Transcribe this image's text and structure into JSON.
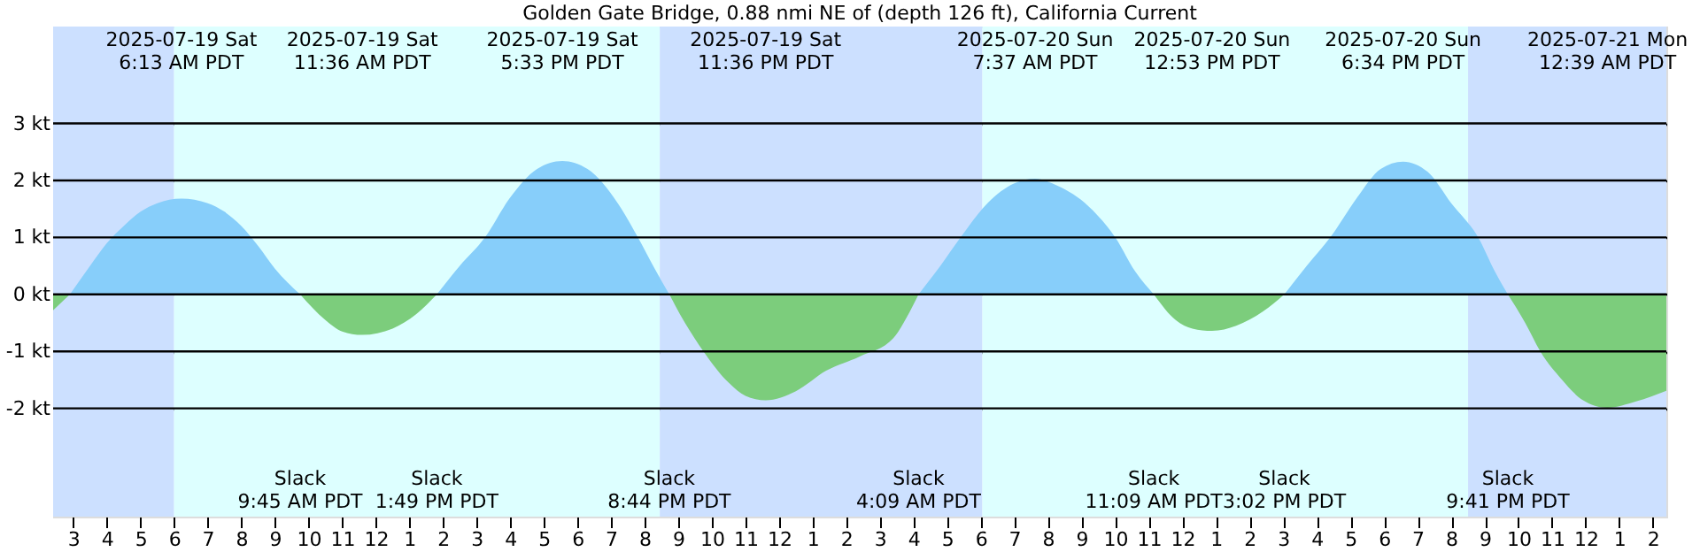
{
  "chart_data": {
    "type": "area",
    "title": "Golden Gate Bridge, 0.88 nmi NE of (depth 126 ft), California Current",
    "x": [
      "2025-07-19T02:24",
      "2025-07-19T02:54",
      "2025-07-19T03:30",
      "2025-07-19T04:00",
      "2025-07-19T04:30",
      "2025-07-19T05:00",
      "2025-07-19T05:30",
      "2025-07-19T06:13",
      "2025-07-19T07:00",
      "2025-07-19T07:30",
      "2025-07-19T08:00",
      "2025-07-19T08:30",
      "2025-07-19T09:00",
      "2025-07-19T09:45",
      "2025-07-19T10:30",
      "2025-07-19T11:00",
      "2025-07-19T11:36",
      "2025-07-19T12:30",
      "2025-07-19T13:12",
      "2025-07-19T13:49",
      "2025-07-19T14:30",
      "2025-07-19T15:15",
      "2025-07-19T16:00",
      "2025-07-19T16:48",
      "2025-07-19T17:33",
      "2025-07-19T18:18",
      "2025-07-19T19:12",
      "2025-07-19T19:48",
      "2025-07-19T20:18",
      "2025-07-19T20:44",
      "2025-07-19T21:12",
      "2025-07-19T21:45",
      "2025-07-19T22:30",
      "2025-07-19T23:00",
      "2025-07-19T23:36",
      "2025-07-20T00:30",
      "2025-07-20T01:24",
      "2025-07-20T02:24",
      "2025-07-20T03:24",
      "2025-07-20T03:48",
      "2025-07-20T04:09",
      "2025-07-20T04:48",
      "2025-07-20T05:24",
      "2025-07-20T06:12",
      "2025-07-20T07:00",
      "2025-07-20T07:37",
      "2025-07-20T08:18",
      "2025-07-20T09:12",
      "2025-07-20T10:00",
      "2025-07-20T10:36",
      "2025-07-20T11:09",
      "2025-07-20T11:48",
      "2025-07-20T12:18",
      "2025-07-20T12:53",
      "2025-07-20T13:36",
      "2025-07-20T14:24",
      "2025-07-20T15:02",
      "2025-07-20T15:42",
      "2025-07-20T16:24",
      "2025-07-20T17:12",
      "2025-07-20T17:54",
      "2025-07-20T18:34",
      "2025-07-20T19:18",
      "2025-07-20T20:00",
      "2025-07-20T20:48",
      "2025-07-20T21:18",
      "2025-07-20T21:41",
      "2025-07-20T22:12",
      "2025-07-20T22:39",
      "2025-07-20T23:18",
      "2025-07-20T23:54",
      "2025-07-21T00:39",
      "2025-07-21T01:30",
      "2025-07-21T02:24"
    ],
    "series": [
      {
        "color": "#87cefa",
        "values": [
          null,
          0,
          0.5,
          0.9,
          1.2,
          1.45,
          1.6,
          1.68,
          1.6,
          1.45,
          1.2,
          0.85,
          0.45,
          0,
          null,
          null,
          null,
          null,
          null,
          0,
          0.5,
          1.0,
          1.7,
          2.2,
          2.34,
          2.2,
          1.6,
          1.0,
          0.45,
          0,
          null,
          null,
          null,
          null,
          null,
          null,
          null,
          null,
          null,
          null,
          0,
          0.5,
          1.0,
          1.6,
          1.95,
          2.03,
          1.9,
          1.55,
          1.0,
          0.4,
          0,
          null,
          null,
          null,
          null,
          null,
          0,
          0.5,
          1.0,
          1.7,
          2.2,
          2.33,
          2.15,
          1.6,
          1.0,
          0.4,
          0,
          null,
          null,
          null,
          null,
          null,
          null,
          null
        ]
      },
      {
        "color": "#7ccd7c",
        "values": [
          -0.28,
          0,
          null,
          null,
          null,
          null,
          null,
          null,
          null,
          null,
          null,
          null,
          null,
          0,
          -0.45,
          -0.65,
          -0.71,
          -0.6,
          -0.35,
          0,
          null,
          null,
          null,
          null,
          null,
          null,
          null,
          null,
          null,
          0,
          -0.5,
          -1.0,
          -1.55,
          -1.78,
          -1.86,
          -1.7,
          -1.34,
          -1.09,
          -0.77,
          -0.4,
          0,
          null,
          null,
          null,
          null,
          null,
          null,
          null,
          null,
          null,
          0,
          -0.45,
          -0.6,
          -0.64,
          -0.55,
          -0.3,
          0,
          null,
          null,
          null,
          null,
          null,
          null,
          null,
          null,
          null,
          0,
          -0.5,
          -1.0,
          -1.5,
          -1.85,
          -1.99,
          -1.88,
          -1.69
        ]
      }
    ],
    "xlim": [
      "2025-07-19T02:24",
      "2025-07-21T02:24"
    ],
    "xticks": [
      {
        "value": "2025-07-19T03:00",
        "label": "3"
      },
      {
        "value": "2025-07-19T04:00",
        "label": "4"
      },
      {
        "value": "2025-07-19T05:00",
        "label": "5"
      },
      {
        "value": "2025-07-19T06:00",
        "label": "6"
      },
      {
        "value": "2025-07-19T07:00",
        "label": "7"
      },
      {
        "value": "2025-07-19T08:00",
        "label": "8"
      },
      {
        "value": "2025-07-19T09:00",
        "label": "9"
      },
      {
        "value": "2025-07-19T10:00",
        "label": "10"
      },
      {
        "value": "2025-07-19T11:00",
        "label": "11"
      },
      {
        "value": "2025-07-19T12:00",
        "label": "12"
      },
      {
        "value": "2025-07-19T13:00",
        "label": "1"
      },
      {
        "value": "2025-07-19T14:00",
        "label": "2"
      },
      {
        "value": "2025-07-19T15:00",
        "label": "3"
      },
      {
        "value": "2025-07-19T16:00",
        "label": "4"
      },
      {
        "value": "2025-07-19T17:00",
        "label": "5"
      },
      {
        "value": "2025-07-19T18:00",
        "label": "6"
      },
      {
        "value": "2025-07-19T19:00",
        "label": "7"
      },
      {
        "value": "2025-07-19T20:00",
        "label": "8"
      },
      {
        "value": "2025-07-19T21:00",
        "label": "9"
      },
      {
        "value": "2025-07-19T22:00",
        "label": "10"
      },
      {
        "value": "2025-07-19T23:00",
        "label": "11"
      },
      {
        "value": "2025-07-20T00:00",
        "label": "12"
      },
      {
        "value": "2025-07-20T01:00",
        "label": "1"
      },
      {
        "value": "2025-07-20T02:00",
        "label": "2"
      },
      {
        "value": "2025-07-20T03:00",
        "label": "3"
      },
      {
        "value": "2025-07-20T04:00",
        "label": "4"
      },
      {
        "value": "2025-07-20T05:00",
        "label": "5"
      },
      {
        "value": "2025-07-20T06:00",
        "label": "6"
      },
      {
        "value": "2025-07-20T07:00",
        "label": "7"
      },
      {
        "value": "2025-07-20T08:00",
        "label": "8"
      },
      {
        "value": "2025-07-20T09:00",
        "label": "9"
      },
      {
        "value": "2025-07-20T10:00",
        "label": "10"
      },
      {
        "value": "2025-07-20T11:00",
        "label": "11"
      },
      {
        "value": "2025-07-20T12:00",
        "label": "12"
      },
      {
        "value": "2025-07-20T13:00",
        "label": "1"
      },
      {
        "value": "2025-07-20T14:00",
        "label": "2"
      },
      {
        "value": "2025-07-20T15:00",
        "label": "3"
      },
      {
        "value": "2025-07-20T16:00",
        "label": "4"
      },
      {
        "value": "2025-07-20T17:00",
        "label": "5"
      },
      {
        "value": "2025-07-20T18:00",
        "label": "6"
      },
      {
        "value": "2025-07-20T19:00",
        "label": "7"
      },
      {
        "value": "2025-07-20T20:00",
        "label": "8"
      },
      {
        "value": "2025-07-20T21:00",
        "label": "9"
      },
      {
        "value": "2025-07-20T22:00",
        "label": "10"
      },
      {
        "value": "2025-07-20T23:00",
        "label": "11"
      },
      {
        "value": "2025-07-21T00:00",
        "label": "12"
      },
      {
        "value": "2025-07-21T01:00",
        "label": "1"
      },
      {
        "value": "2025-07-21T02:00",
        "label": "2"
      }
    ],
    "ylim": [
      -3.9,
      4.7
    ],
    "yticks": [
      {
        "value": -2,
        "label": "-2 kt"
      },
      {
        "value": -1,
        "label": "-1 kt"
      },
      {
        "value": 0,
        "label": "0 kt"
      },
      {
        "value": 1,
        "label": "1 kt"
      },
      {
        "value": 2,
        "label": "2 kt"
      },
      {
        "value": 3,
        "label": "3 kt"
      }
    ],
    "grid": "y",
    "bands": [
      {
        "axis": "x",
        "from": "2025-07-19T02:24",
        "to": "2025-07-19T06:00",
        "color": "#cce0ff"
      },
      {
        "axis": "x",
        "from": "2025-07-19T06:00",
        "to": "2025-07-19T20:27",
        "color": "#ddffff"
      },
      {
        "axis": "x",
        "from": "2025-07-19T20:27",
        "to": "2025-07-20T06:03",
        "color": "#cce0ff"
      },
      {
        "axis": "x",
        "from": "2025-07-20T06:03",
        "to": "2025-07-20T20:30",
        "color": "#ddffff"
      },
      {
        "axis": "x",
        "from": "2025-07-20T20:30",
        "to": "2025-07-21T02:24",
        "color": "#cce0ff"
      }
    ],
    "annotations": [
      "2025-07-19 Sat\n6:13 AM PDT",
      "2025-07-19 Sat\n11:36 AM PDT",
      "2025-07-19 Sat\n5:33 PM PDT",
      "2025-07-19 Sat\n11:36 PM PDT",
      "2025-07-20 Sun\n7:37 AM PDT",
      "2025-07-20 Sun\n12:53 PM PDT",
      "2025-07-20 Sun\n6:34 PM PDT",
      "2025-07-21 Mon\n12:39 AM PDT",
      "Slack\n9:45 AM PDT",
      "Slack\n1:49 PM PDT",
      "Slack\n8:44 PM PDT",
      "Slack\n4:09 AM PDT",
      "Slack\n11:09 AM PDT",
      "Slack\n3:02 PM PDT",
      "Slack\n9:41 PM PDT"
    ]
  }
}
